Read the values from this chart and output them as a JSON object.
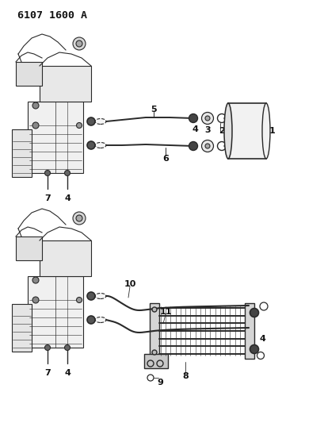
{
  "title": "6107 1600 A",
  "bg_color": "#ffffff",
  "line_color": "#2a2a2a",
  "label_color": "#111111",
  "label_fontsize": 7.0,
  "label_bold_fontsize": 8.0,
  "title_fontsize": 9.5,
  "gray1": "#b0b0b0",
  "gray2": "#888888",
  "gray3": "#cccccc",
  "gray_dark": "#555555"
}
